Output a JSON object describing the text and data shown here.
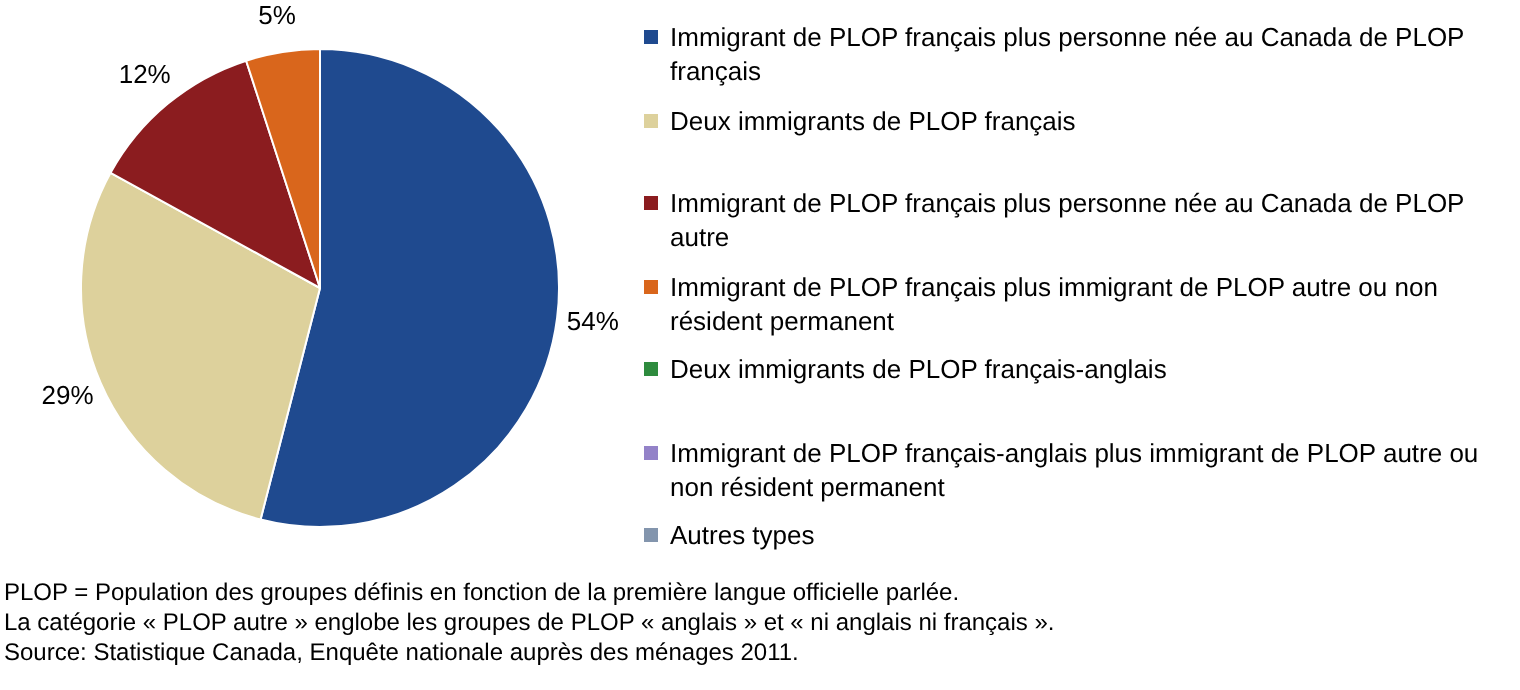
{
  "chart_data": {
    "type": "pie",
    "categories": [
      "Immigrant de PLOP français plus personne née au Canada de PLOP français",
      "Deux immigrants de PLOP français",
      "Immigrant de PLOP français plus personne née au Canada de PLOP autre",
      "Immigrant de PLOP français plus immigrant de PLOP autre ou non résident permanent",
      "Deux immigrants de PLOP français-anglais",
      "Immigrant de PLOP français-anglais plus immigrant de PLOP autre ou non résident permanent",
      "Autres types"
    ],
    "values": [
      54,
      29,
      12,
      5,
      0,
      0,
      0
    ],
    "colors": [
      "#1f4a8f",
      "#ddd19c",
      "#8b1c1f",
      "#d9661c",
      "#2e8b3e",
      "#9382c8",
      "#8395ad"
    ],
    "value_labels": [
      "54%",
      "29%",
      "12%",
      "5%",
      null,
      null,
      null
    ],
    "legend": "right",
    "annotations": [
      "PLOP = Population des groupes définis en fonction de la première langue officielle parlée.",
      "La catégorie « PLOP autre » englobe les groupes de PLOP « anglais » et « ni anglais ni français ».",
      "Source: Statistique Canada, Enquête nationale auprès des ménages 2011."
    ]
  }
}
